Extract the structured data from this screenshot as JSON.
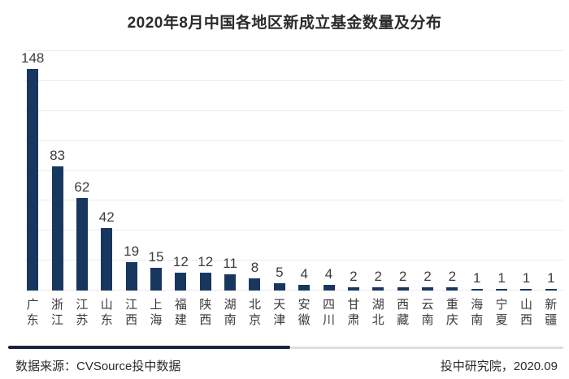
{
  "title": "2020年8月中国各地区新成立基金数量及分布",
  "chart_data": {
    "type": "bar",
    "title": "2020年8月中国各地区新成立基金数量及分布",
    "categories": [
      "广东",
      "浙江",
      "江苏",
      "山东",
      "江西",
      "上海",
      "福建",
      "陕西",
      "湖南",
      "北京",
      "天津",
      "安徽",
      "四川",
      "甘肃",
      "湖北",
      "西藏",
      "云南",
      "重庆",
      "海南",
      "宁夏",
      "山西",
      "新疆"
    ],
    "values": [
      148,
      83,
      62,
      42,
      19,
      15,
      12,
      12,
      11,
      8,
      5,
      4,
      4,
      2,
      2,
      2,
      2,
      2,
      1,
      1,
      1,
      1
    ],
    "xlabel": "",
    "ylabel": "",
    "ylim": [
      0,
      160
    ],
    "gridline_step": 20,
    "grid": true,
    "legend": "none",
    "data_labels": true,
    "bar_color": "#17375E",
    "gridline_color": "#eaeaea",
    "label_color": "#3d3d3d"
  },
  "footer": {
    "source": "数据来源：CVSource投中数据",
    "publisher": "投中研究院，2020.09"
  },
  "colors": {
    "bar": "#17375E",
    "divider_navy": "#1a2240",
    "divider_gray": "#dddddd",
    "title_text": "#2b2b2b"
  }
}
